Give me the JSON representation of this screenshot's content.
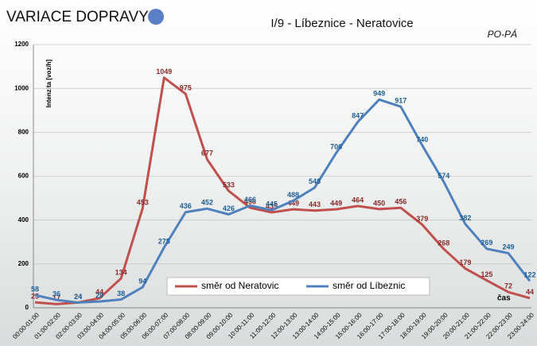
{
  "chart_data": {
    "type": "line",
    "title": "VARIACE DOPRAVY",
    "subtitle": "I/9 - Líbeznice - Neratovice",
    "note": "PO-PÁ",
    "y_label": "Intenzita [voz/h]",
    "x_label": "čas",
    "categories": [
      "00:00-01:00",
      "01:00-02:00",
      "02:00-03:00",
      "03:00-04:00",
      "04:00-05:00",
      "05:00-06:00",
      "06:00-07:00",
      "07:00-08:00",
      "08:00-09:00",
      "09:00-10:00",
      "10:00-11:00",
      "11:00-12:00",
      "12:00-13:00",
      "13:00-14:00",
      "14:00-15:00",
      "15:00-16:00",
      "16:00-17:00",
      "17:00-18:00",
      "18:00-19:00",
      "19:00-20:00",
      "20:00-21:00",
      "21:00-22:00",
      "22:00-23:00",
      "23:00-24:00"
    ],
    "series": [
      {
        "name": "směr od Neratovic",
        "color": "#c0504d",
        "label_color": "#8b2a2a",
        "values": [
          25,
          17,
          24,
          44,
          134,
          453,
          1049,
          975,
          677,
          533,
          456,
          435,
          449,
          443,
          449,
          464,
          450,
          456,
          379,
          268,
          179,
          125,
          72,
          44
        ]
      },
      {
        "name": "směr od Líbeznic",
        "color": "#4f81bd",
        "label_color": "#1f5f99",
        "values": [
          58,
          36,
          24,
          29,
          38,
          94,
          275,
          436,
          452,
          426,
          466,
          445,
          488,
          548,
          706,
          847,
          949,
          917,
          740,
          574,
          382,
          269,
          249,
          122
        ]
      }
    ],
    "ylim": [
      0,
      1200
    ],
    "yticks": [
      0,
      200,
      400,
      600,
      800,
      1000,
      1200
    ],
    "grid": true,
    "legend": "bottom"
  }
}
